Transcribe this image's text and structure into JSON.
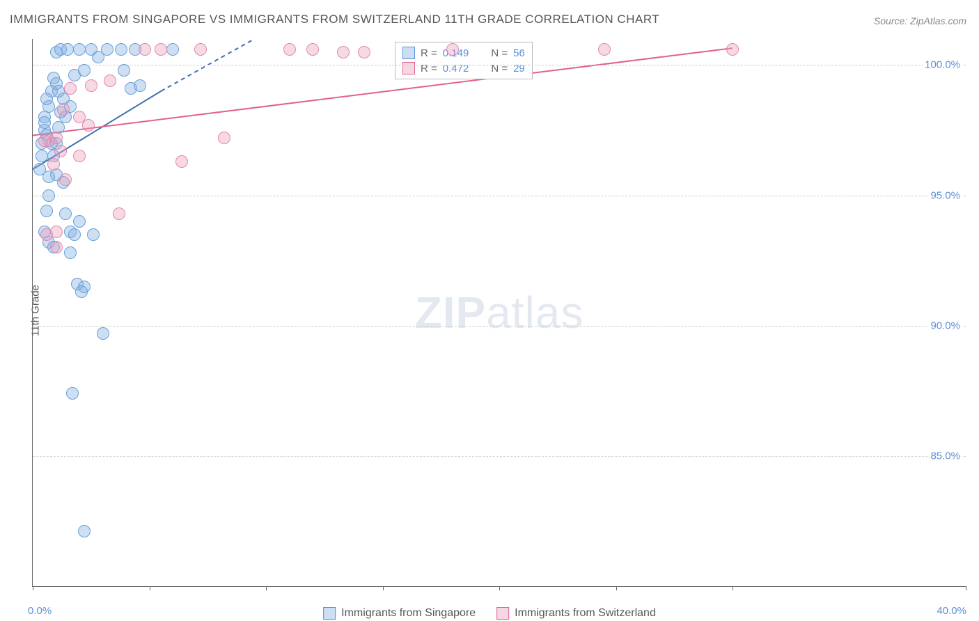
{
  "title": "IMMIGRANTS FROM SINGAPORE VS IMMIGRANTS FROM SWITZERLAND 11TH GRADE CORRELATION CHART",
  "source": "Source: ZipAtlas.com",
  "y_axis_title": "11th Grade",
  "watermark_a": "ZIP",
  "watermark_b": "atlas",
  "chart": {
    "type": "scatter",
    "xlim": [
      0,
      40
    ],
    "ylim": [
      80,
      101
    ],
    "x_ticks": [
      0,
      5,
      10,
      15,
      20,
      25,
      30,
      40
    ],
    "x_tick_labels": {
      "0": "0.0%",
      "40": "40.0%"
    },
    "y_ticks": [
      85,
      90,
      95,
      100
    ],
    "y_tick_labels": {
      "85": "85.0%",
      "90": "90.0%",
      "95": "95.0%",
      "100": "100.0%"
    },
    "background_color": "#ffffff",
    "grid_color": "#cccccc",
    "plot_border_color": "#666666",
    "marker_radius": 9,
    "series": [
      {
        "key": "singapore",
        "label": "Immigrants from Singapore",
        "color_fill": "rgba(130,175,225,0.40)",
        "color_stroke": "#6a9fd8",
        "R": "0.149",
        "N": "56",
        "trend": {
          "x1": 0,
          "y1": 96.0,
          "x2": 5.5,
          "y2": 99.0,
          "dash_to_x": 9.5,
          "dash_to_y": 101.0,
          "color": "#3f6fae",
          "width": 2
        },
        "points": [
          [
            0.3,
            96.0
          ],
          [
            0.4,
            97.0
          ],
          [
            0.5,
            97.5
          ],
          [
            0.6,
            97.3
          ],
          [
            0.5,
            98.0
          ],
          [
            0.7,
            98.4
          ],
          [
            0.8,
            99.0
          ],
          [
            0.9,
            99.5
          ],
          [
            1.0,
            100.5
          ],
          [
            1.2,
            100.6
          ],
          [
            1.5,
            100.6
          ],
          [
            2.0,
            100.6
          ],
          [
            2.5,
            100.6
          ],
          [
            2.8,
            100.3
          ],
          [
            3.2,
            100.6
          ],
          [
            3.8,
            100.6
          ],
          [
            4.4,
            100.6
          ],
          [
            1.0,
            99.3
          ],
          [
            1.3,
            98.7
          ],
          [
            1.4,
            98.0
          ],
          [
            1.0,
            97.0
          ],
          [
            1.0,
            95.8
          ],
          [
            1.3,
            95.5
          ],
          [
            0.7,
            95.0
          ],
          [
            0.6,
            94.4
          ],
          [
            1.4,
            94.3
          ],
          [
            2.0,
            94.0
          ],
          [
            0.5,
            93.6
          ],
          [
            0.7,
            93.2
          ],
          [
            1.6,
            93.6
          ],
          [
            1.8,
            93.5
          ],
          [
            2.6,
            93.5
          ],
          [
            0.9,
            93.0
          ],
          [
            1.6,
            92.8
          ],
          [
            1.9,
            91.6
          ],
          [
            2.2,
            91.5
          ],
          [
            2.1,
            91.3
          ],
          [
            3.0,
            89.7
          ],
          [
            1.7,
            87.4
          ],
          [
            2.2,
            82.1
          ],
          [
            0.4,
            96.5
          ],
          [
            0.5,
            97.8
          ],
          [
            0.6,
            98.7
          ],
          [
            0.8,
            97.0
          ],
          [
            0.9,
            96.5
          ],
          [
            0.7,
            95.7
          ],
          [
            1.1,
            97.6
          ],
          [
            1.2,
            98.2
          ],
          [
            1.1,
            99.0
          ],
          [
            1.8,
            99.6
          ],
          [
            2.2,
            99.8
          ],
          [
            1.6,
            98.4
          ],
          [
            3.9,
            99.8
          ],
          [
            4.2,
            99.1
          ],
          [
            4.6,
            99.2
          ],
          [
            6.0,
            100.6
          ]
        ]
      },
      {
        "key": "switzerland",
        "label": "Immigrants from Switzerland",
        "color_fill": "rgba(235,160,190,0.40)",
        "color_stroke": "#e287ab",
        "R": "0.472",
        "N": "29",
        "trend": {
          "x1": 0,
          "y1": 97.3,
          "x2": 30.0,
          "y2": 100.65,
          "color": "#e06090",
          "width": 2
        },
        "points": [
          [
            0.6,
            93.5
          ],
          [
            1.0,
            93.6
          ],
          [
            1.4,
            95.6
          ],
          [
            2.0,
            96.5
          ],
          [
            2.5,
            99.2
          ],
          [
            3.3,
            99.4
          ],
          [
            3.7,
            94.3
          ],
          [
            4.8,
            100.6
          ],
          [
            5.5,
            100.6
          ],
          [
            6.4,
            96.3
          ],
          [
            7.2,
            100.6
          ],
          [
            8.2,
            97.2
          ],
          [
            11.0,
            100.6
          ],
          [
            12.0,
            100.6
          ],
          [
            13.3,
            100.5
          ],
          [
            14.2,
            100.5
          ],
          [
            18.0,
            100.6
          ],
          [
            24.5,
            100.6
          ],
          [
            30.0,
            100.6
          ],
          [
            1.0,
            97.2
          ],
          [
            1.3,
            98.3
          ],
          [
            1.6,
            99.1
          ],
          [
            2.0,
            98.0
          ],
          [
            0.9,
            96.2
          ],
          [
            0.7,
            97.1
          ],
          [
            1.2,
            96.7
          ],
          [
            2.4,
            97.7
          ],
          [
            0.5,
            97.1
          ],
          [
            1.0,
            93.0
          ]
        ]
      }
    ]
  },
  "legend_stats": {
    "r_prefix": "R = ",
    "n_prefix": "N = "
  }
}
